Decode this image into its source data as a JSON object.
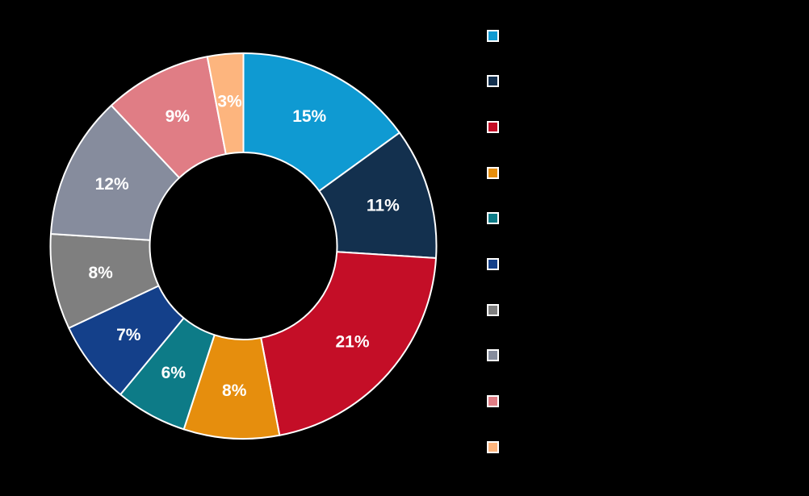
{
  "background_color": "#000000",
  "chart_data": {
    "type": "pie",
    "subtype": "donut",
    "direction": "clockwise",
    "start_angle_deg": 0,
    "legend_position": "right",
    "total": 100,
    "label_color": "#FFFFFF",
    "slice_border_color": "#FFFFFF",
    "slices": [
      {
        "value": 15,
        "label": "15%",
        "color": "#0F9AD2"
      },
      {
        "value": 11,
        "label": "11%",
        "color": "#13304E"
      },
      {
        "value": 21,
        "label": "21%",
        "color": "#C40E27"
      },
      {
        "value": 8,
        "label": "8%",
        "color": "#E68E0D"
      },
      {
        "value": 6,
        "label": "6%",
        "color": "#0D7B87"
      },
      {
        "value": 7,
        "label": "7%",
        "color": "#14408A"
      },
      {
        "value": 8,
        "label": "8%",
        "color": "#7F7F7F"
      },
      {
        "value": 12,
        "label": "12%",
        "color": "#868C9D"
      },
      {
        "value": 9,
        "label": "9%",
        "color": "#E07D85"
      },
      {
        "value": 3,
        "label": "3%",
        "color": "#FDB57E"
      }
    ],
    "legend": {
      "swatch_border_color": "#FFFFFF",
      "items": [
        {
          "color": "#0F9AD2",
          "label": ""
        },
        {
          "color": "#13304E",
          "label": ""
        },
        {
          "color": "#C40E27",
          "label": ""
        },
        {
          "color": "#E68E0D",
          "label": ""
        },
        {
          "color": "#0D7B87",
          "label": ""
        },
        {
          "color": "#14408A",
          "label": ""
        },
        {
          "color": "#7F7F7F",
          "label": ""
        },
        {
          "color": "#868C9D",
          "label": ""
        },
        {
          "color": "#E07D85",
          "label": ""
        },
        {
          "color": "#FDB57E",
          "label": ""
        }
      ]
    }
  }
}
